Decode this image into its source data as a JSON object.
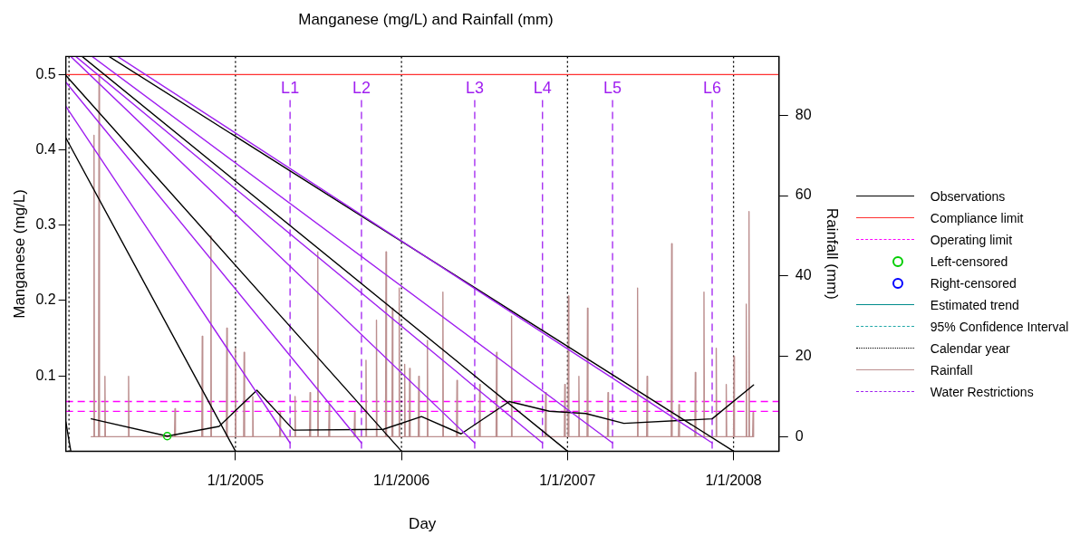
{
  "chart_data": {
    "type": "line",
    "title": "Manganese (mg/L) and Rainfall (mm)",
    "xlabel": "Day",
    "ylabel": "Manganese (mg/L)",
    "y2label": "Rainfall (mm)",
    "xlim": [
      "2003-12-25",
      "2008-04-10"
    ],
    "xticks": [
      {
        "value": "2005-01-01",
        "label": "1/1/2005"
      },
      {
        "value": "2006-01-01",
        "label": "1/1/2006"
      },
      {
        "value": "2007-01-01",
        "label": "1/1/2007"
      },
      {
        "value": "2008-01-01",
        "label": "1/1/2008"
      }
    ],
    "ylim": [
      0,
      0.524
    ],
    "yticks": [
      0.1,
      0.2,
      0.3,
      0.4,
      0.5
    ],
    "y2lim": [
      -3.6,
      94.6
    ],
    "y2ticks": [
      0,
      20,
      40,
      60,
      80
    ],
    "grid": false,
    "legend": "right",
    "series": [
      {
        "name": "Observations",
        "color": "#000000",
        "x": [
          "2004-02-19",
          "2004-08-04",
          "2004-11-26",
          "2005-02-17",
          "2005-05-09",
          "2005-11-22",
          "2006-02-14",
          "2006-05-12",
          "2006-08-26",
          "2006-11-22",
          "2007-02-10",
          "2007-05-05",
          "2007-11-15",
          "2008-02-14"
        ],
        "values": [
          0.043,
          0.02,
          0.033,
          0.081,
          0.028,
          0.029,
          0.046,
          0.023,
          0.066,
          0.053,
          0.05,
          0.037,
          0.043,
          0.088
        ]
      },
      {
        "name": "Compliance limit",
        "color": "#ff3030",
        "x": [
          "2003-12-25",
          "2008-04-10"
        ],
        "values": [
          0.5,
          0.5
        ]
      },
      {
        "name": "Operating limit",
        "color": "#ff00ff",
        "line_style": "dashed"
      },
      {
        "name": "Left-censored",
        "type": "scatter",
        "marker": "circle",
        "color": "#00cd00",
        "x": [
          "2004-08-04"
        ],
        "values": [
          0.02
        ]
      },
      {
        "name": "Right-censored",
        "type": "scatter",
        "marker": "circle",
        "color": "#0000ff"
      },
      {
        "name": "Estimated trend",
        "color": "#008b8b"
      },
      {
        "name": "95% Confidence Interval",
        "color": "#20a8a8",
        "line_style": "dashed"
      },
      {
        "name": "Calendar year",
        "color": "#000000",
        "line_style": "dotted"
      },
      {
        "name": "Rainfall",
        "color": "#bc8f8f",
        "axis": "y2",
        "x": [
          "2004-02-19",
          "2004-02-24",
          "2004-02-25",
          "2004-02-26",
          "2004-03-06",
          "2004-03-07",
          "2004-03-08",
          "2004-03-19",
          "2004-03-20",
          "2004-03-21",
          "2004-05-10",
          "2004-05-11",
          "2004-05-12",
          "2004-08-20",
          "2004-08-21",
          "2004-08-22",
          "2004-10-19",
          "2004-10-20",
          "2004-10-21",
          "2004-11-07",
          "2004-11-08",
          "2004-11-09",
          "2004-12-12",
          "2004-12-13",
          "2004-12-14",
          "2004-12-31",
          "2005-01-01",
          "2005-01-02",
          "2005-01-19",
          "2005-01-20",
          "2005-01-21",
          "2005-02-07",
          "2005-02-08",
          "2005-02-09",
          "2005-04-08",
          "2005-04-09",
          "2005-04-10",
          "2005-05-11",
          "2005-05-12",
          "2005-05-13",
          "2005-06-13",
          "2005-06-14",
          "2005-06-15",
          "2005-06-30",
          "2005-07-01",
          "2005-07-02",
          "2005-07-25",
          "2005-07-26",
          "2005-07-27",
          "2005-09-19",
          "2005-09-20",
          "2005-09-21",
          "2005-10-14",
          "2005-10-15",
          "2005-10-16",
          "2005-11-06",
          "2005-11-07",
          "2005-11-08",
          "2005-11-27",
          "2005-11-28",
          "2005-11-29",
          "2005-12-11",
          "2005-12-12",
          "2005-12-13",
          "2005-12-26",
          "2005-12-27",
          "2005-12-28",
          "2006-01-07",
          "2006-01-08",
          "2006-01-09",
          "2006-01-18",
          "2006-01-19",
          "2006-01-20",
          "2006-02-07",
          "2006-02-08",
          "2006-02-09",
          "2006-02-26",
          "2006-02-27",
          "2006-02-28",
          "2006-04-01",
          "2006-04-02",
          "2006-04-03",
          "2006-05-02",
          "2006-05-03",
          "2006-05-04",
          "2006-06-21",
          "2006-06-22",
          "2006-06-23",
          "2006-07-28",
          "2006-07-29",
          "2006-07-30",
          "2006-08-30",
          "2006-08-31",
          "2006-09-01",
          "2006-11-13",
          "2006-11-14",
          "2006-11-15",
          "2006-12-25",
          "2006-12-26",
          "2006-12-27",
          "2007-01-02",
          "2007-01-03",
          "2007-01-04",
          "2007-01-25",
          "2007-01-26",
          "2007-01-27",
          "2007-02-13",
          "2007-02-14",
          "2007-02-15",
          "2007-03-30",
          "2007-03-31",
          "2007-04-01",
          "2007-06-03",
          "2007-06-04",
          "2007-06-05",
          "2007-06-24",
          "2007-06-25",
          "2007-06-26",
          "2007-08-17",
          "2007-08-18",
          "2007-08-19",
          "2007-09-02",
          "2007-09-03",
          "2007-09-04",
          "2007-10-08",
          "2007-10-09",
          "2007-10-10",
          "2007-10-27",
          "2007-10-28",
          "2007-10-29",
          "2007-11-23",
          "2007-11-24",
          "2007-11-25",
          "2007-12-15",
          "2007-12-16",
          "2007-12-17",
          "2008-01-01",
          "2008-01-02",
          "2008-01-03",
          "2008-01-28",
          "2008-01-29",
          "2008-01-30",
          "2008-02-03",
          "2008-02-04",
          "2008-02-05",
          "2008-02-12",
          "2008-02-13",
          "2008-02-14"
        ],
        "values": [
          0,
          0,
          75,
          0,
          0,
          90,
          0,
          0,
          15,
          0,
          0,
          15,
          0,
          0,
          7,
          0,
          0,
          25,
          0,
          0,
          50,
          0,
          0,
          27,
          0,
          0,
          22,
          0,
          0,
          21,
          0,
          0,
          10,
          0,
          0,
          6,
          0,
          0,
          10,
          0,
          0,
          11,
          0,
          0,
          46,
          0,
          0,
          8,
          0,
          0,
          6,
          0,
          0,
          19,
          0,
          0,
          29,
          0,
          0,
          46,
          0,
          0,
          32,
          0,
          0,
          37,
          0,
          0,
          18,
          0,
          0,
          17,
          0,
          0,
          15,
          0,
          0,
          24,
          0,
          0,
          36,
          0,
          0,
          14,
          0,
          0,
          13,
          0,
          0,
          21,
          0,
          0,
          30,
          0,
          0,
          11,
          0,
          0,
          13,
          0,
          0,
          35,
          0,
          0,
          15,
          0,
          0,
          32,
          0,
          0,
          11,
          0,
          0,
          37,
          0,
          0,
          15,
          0,
          0,
          48,
          0,
          0,
          8,
          0,
          0,
          16,
          0,
          0,
          36,
          0,
          0,
          22,
          0,
          0,
          13,
          0,
          0,
          20,
          0,
          0,
          33,
          0,
          0,
          56,
          0,
          0,
          6,
          0
        ]
      },
      {
        "name": "Water Restrictions",
        "color": "#a020f0",
        "line_style": "dashed"
      },
      {
        "color": "#000000",
        "x": [
          "2003-12-25",
          "2005-01-01"
        ],
        "values": [
          0.416,
          0
        ]
      },
      {
        "color": "#000000",
        "x": [
          "2003-12-25",
          "2006-01-01"
        ],
        "values": [
          0.499,
          0
        ]
      },
      {
        "color": "#000000",
        "x": [
          "2004-01-30",
          "2007-01-01"
        ],
        "values": [
          0.524,
          0
        ]
      },
      {
        "color": "#000000",
        "x": [
          "2004-03-29",
          "2008-01-01"
        ],
        "values": [
          0.524,
          0
        ]
      },
      {
        "color": "#000000",
        "x": [
          "2003-12-25",
          "2004-01-05"
        ],
        "values": [
          0.039,
          0
        ]
      },
      {
        "color": "#a020f0",
        "x": [
          "2003-12-25",
          "2005-05-01"
        ],
        "values": [
          0.458,
          0.011
        ]
      },
      {
        "color": "#a020f0",
        "x": [
          "2003-12-25",
          "2005-10-05"
        ],
        "values": [
          0.49,
          0.011
        ]
      },
      {
        "color": "#a020f0",
        "x": [
          "2004-01-05",
          "2006-06-11"
        ],
        "values": [
          0.524,
          0.011
        ]
      },
      {
        "color": "#a020f0",
        "x": [
          "2004-01-16",
          "2006-11-07"
        ],
        "values": [
          0.524,
          0.011
        ]
      },
      {
        "color": "#a020f0",
        "x": [
          "2004-02-21",
          "2007-04-10"
        ],
        "values": [
          0.524,
          0.011
        ]
      },
      {
        "color": "#a020f0",
        "x": [
          "2004-04-17",
          "2007-11-15"
        ],
        "values": [
          0.524,
          0.011
        ]
      }
    ],
    "ref_lines": [
      {
        "axis": "y",
        "value": 0.066,
        "color": "#ff00ff",
        "line_style": "dashed"
      },
      {
        "axis": "y",
        "value": 0.053,
        "color": "#ff00ff",
        "line_style": "dashed"
      },
      {
        "axis": "x",
        "value": "2004-01-01",
        "color": "#000000",
        "line_style": "dotted"
      },
      {
        "axis": "x",
        "value": "2005-01-01",
        "color": "#000000",
        "line_style": "dotted"
      },
      {
        "axis": "x",
        "value": "2006-01-01",
        "color": "#000000",
        "line_style": "dotted"
      },
      {
        "axis": "x",
        "value": "2007-01-01",
        "color": "#000000",
        "line_style": "dotted"
      },
      {
        "axis": "x",
        "value": "2008-01-01",
        "color": "#000000",
        "line_style": "dotted"
      },
      {
        "axis": "x",
        "value": "2005-05-01",
        "label": "L1",
        "color": "#a020f0",
        "line_style": "dashed"
      },
      {
        "axis": "x",
        "value": "2005-10-05",
        "label": "L2",
        "color": "#a020f0",
        "line_style": "dashed"
      },
      {
        "axis": "x",
        "value": "2006-06-11",
        "label": "L3",
        "color": "#a020f0",
        "line_style": "dashed"
      },
      {
        "axis": "x",
        "value": "2006-11-07",
        "label": "L4",
        "color": "#a020f0",
        "line_style": "dashed"
      },
      {
        "axis": "x",
        "value": "2007-04-10",
        "label": "L5",
        "color": "#a020f0",
        "line_style": "dashed"
      },
      {
        "axis": "x",
        "value": "2007-11-15",
        "label": "L6",
        "color": "#a020f0",
        "line_style": "dashed"
      }
    ]
  }
}
